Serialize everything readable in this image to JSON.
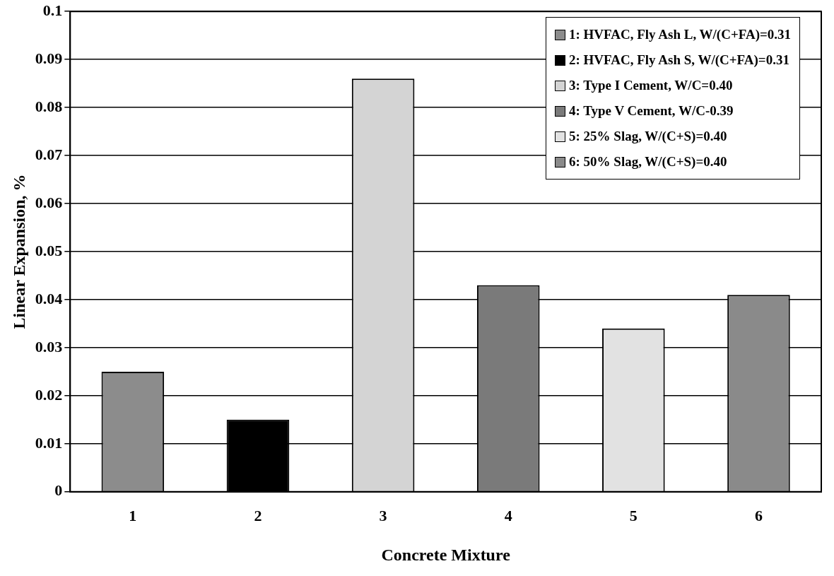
{
  "chart_data": {
    "type": "bar",
    "xlabel": "Concrete Mixture",
    "ylabel": "Linear Expansion, %",
    "categories": [
      "1",
      "2",
      "3",
      "4",
      "5",
      "6"
    ],
    "series": [
      {
        "name": "1: HVFAC, Fly Ash L, W/(C+FA)=0.31",
        "color": "#8c8c8c",
        "values": [
          0.025,
          null,
          null,
          null,
          null,
          null
        ]
      },
      {
        "name": "2: HVFAC, Fly Ash S, W/(C+FA)=0.31",
        "color": "#000000",
        "values": [
          null,
          0.015,
          null,
          null,
          null,
          null
        ]
      },
      {
        "name": "3: Type I Cement, W/C=0.40",
        "color": "#d4d4d4",
        "values": [
          null,
          null,
          0.086,
          null,
          null,
          null
        ]
      },
      {
        "name": "4: Type V Cement, W/C-0.39",
        "color": "#7a7a7a",
        "values": [
          null,
          null,
          null,
          0.043,
          null,
          null
        ]
      },
      {
        "name": "5: 25% Slag, W/(C+S)=0.40",
        "color": "#e2e2e2",
        "values": [
          null,
          null,
          null,
          null,
          0.034,
          null
        ]
      },
      {
        "name": "6: 50% Slag, W/(C+S)=0.40",
        "color": "#8a8a8a",
        "values": [
          null,
          null,
          null,
          null,
          null,
          0.041
        ]
      }
    ],
    "ylim": [
      0,
      0.1
    ],
    "yticks": [
      0,
      0.01,
      0.02,
      0.03,
      0.04,
      0.05,
      0.06,
      0.07,
      0.08,
      0.09,
      0.1
    ],
    "grid": "y",
    "legend": "top right"
  }
}
